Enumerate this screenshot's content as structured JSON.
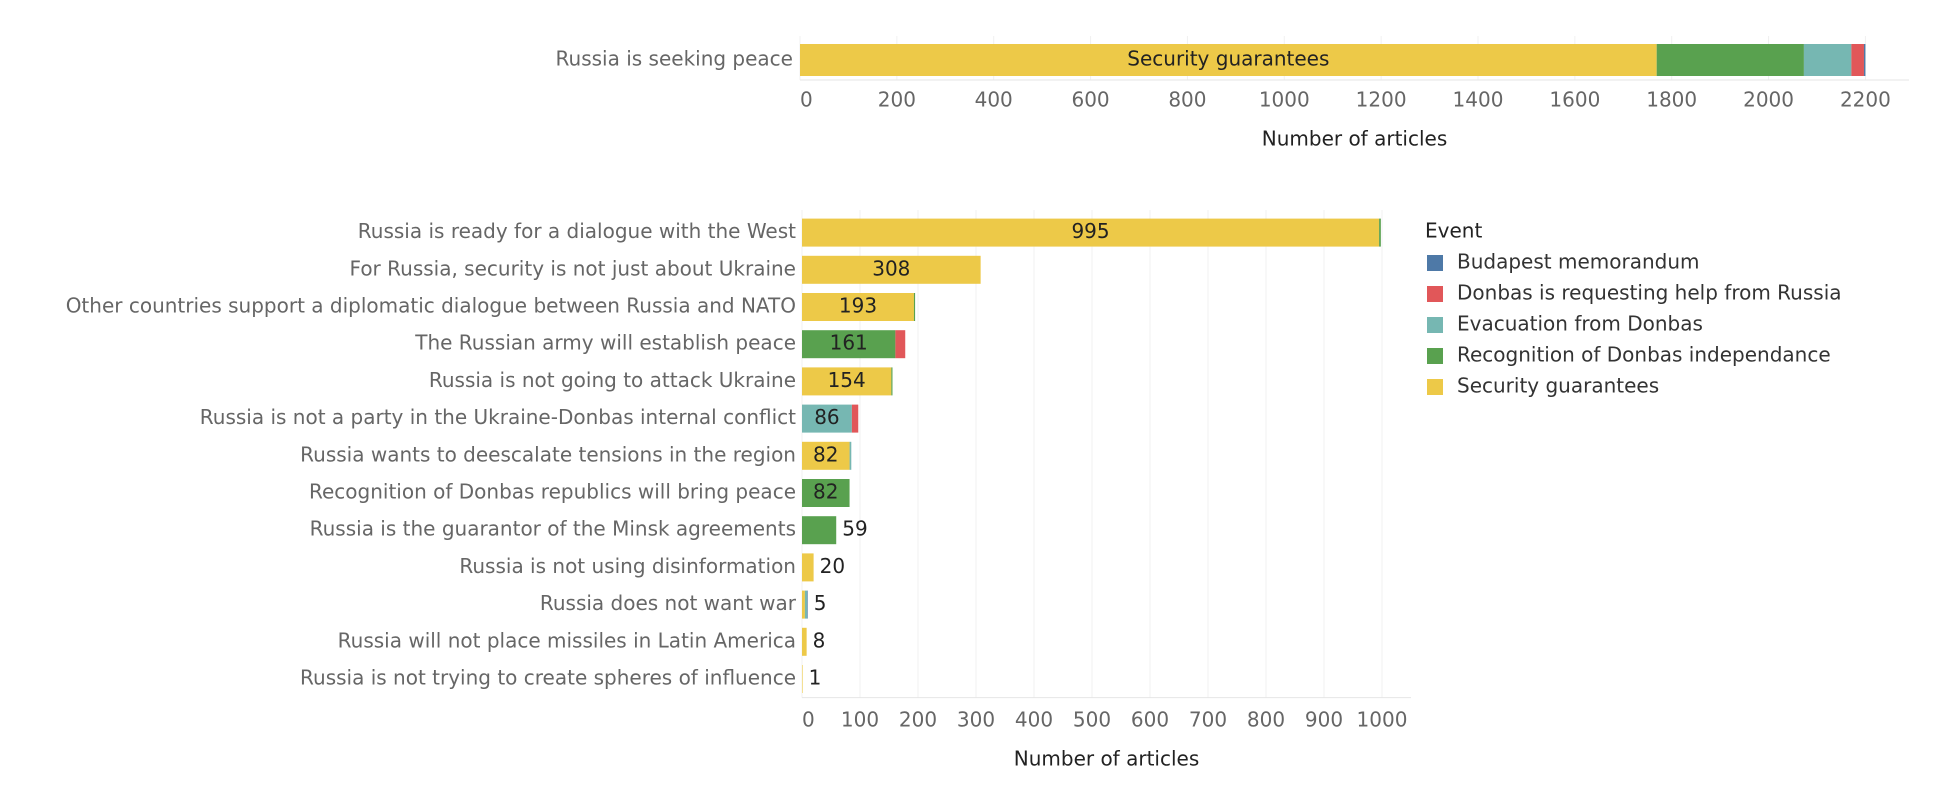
{
  "chart_data": [
    {
      "type": "stacked-bar-horizontal",
      "categories": [
        "Russia is seeking peace"
      ],
      "series": [
        {
          "name": "Budapest memorandum",
          "color": "#4e79a7",
          "values": [
            3
          ]
        },
        {
          "name": "Donbas is requesting help from Russia",
          "color": "#e15759",
          "values": [
            26
          ]
        },
        {
          "name": "Evacuation from Donbas",
          "color": "#76b7b2",
          "values": [
            98
          ]
        },
        {
          "name": "Recognition of Donbas independance",
          "color": "#59a14f",
          "values": [
            304
          ]
        },
        {
          "name": "Security guarantees",
          "color": "#edc948",
          "values": [
            1769
          ]
        }
      ],
      "xlabel": "Number of articles",
      "xlim": [
        0,
        2290
      ],
      "xticks": [
        0,
        200,
        400,
        600,
        800,
        1000,
        1200,
        1400,
        1600,
        1800,
        2000,
        2200
      ],
      "grid": true
    },
    {
      "type": "stacked-bar-horizontal",
      "categories": [
        "Russia is ready for a dialogue with the West",
        "For Russia, security is not just about Ukraine",
        "Other countries support a diplomatic dialogue between Russia and NATO",
        "The Russian army will establish peace",
        "Russia is not going to attack Ukraine",
        "Russia is not a party in the Ukraine-Donbas internal conflict",
        "Russia wants to deescalate tensions in the region",
        "Recognition of Donbas republics will bring peace",
        "Russia is the guarantor of the Minsk agreements",
        "Russia is not using disinformation",
        "Russia does not want war",
        "Russia will not place missiles in Latin America",
        "Russia is not trying to create spheres of influence"
      ],
      "series": [
        {
          "name": "Budapest memorandum",
          "color": "#4e79a7",
          "values": [
            null,
            null,
            null,
            null,
            null,
            null,
            null,
            null,
            null,
            null,
            1,
            null,
            null
          ]
        },
        {
          "name": "Donbas is requesting help from Russia",
          "color": "#e15759",
          "values": [
            null,
            null,
            null,
            17,
            null,
            11,
            null,
            null,
            null,
            null,
            null,
            null,
            null
          ]
        },
        {
          "name": "Evacuation from Donbas",
          "color": "#76b7b2",
          "values": [
            null,
            null,
            null,
            null,
            null,
            86,
            3,
            null,
            null,
            null,
            4,
            null,
            null
          ]
        },
        {
          "name": "Recognition of Donbas independance",
          "color": "#59a14f",
          "values": [
            3,
            null,
            2,
            161,
            2,
            null,
            null,
            82,
            59,
            null,
            null,
            null,
            null
          ]
        },
        {
          "name": "Security guarantees",
          "color": "#edc948",
          "values": [
            995,
            308,
            193,
            null,
            154,
            null,
            82,
            null,
            null,
            20,
            5,
            8,
            1
          ]
        }
      ],
      "legend_title": "Event",
      "xlabel": "Number of articles",
      "xlim": [
        0,
        1050
      ],
      "xticks": [
        0,
        100,
        200,
        300,
        400,
        500,
        600,
        700,
        800,
        900,
        1000
      ],
      "grid": true,
      "legend": "right"
    }
  ]
}
